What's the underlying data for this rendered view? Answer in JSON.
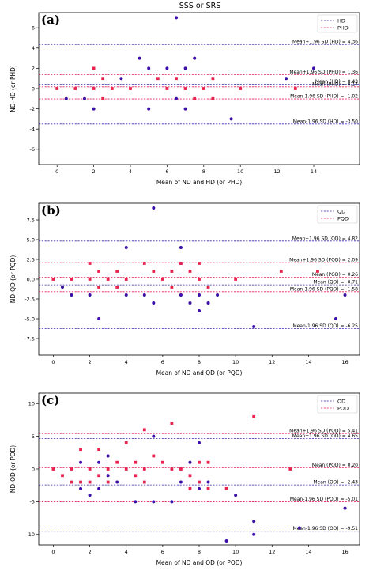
{
  "figure_title": "SSS or SRS",
  "colors": {
    "blue": "#3a2aa8",
    "red": "#e0245e",
    "blue_marker": "#3b0fa8",
    "red_marker": "#e8234f"
  },
  "chart_data": [
    {
      "type": "scatter",
      "panel_label": "(a)",
      "xlabel": "Mean of ND and HD (or PHD)",
      "ylabel": "ND-HD (or PHD)",
      "xlim": [
        -1.0,
        16.5
      ],
      "ylim": [
        -7.5,
        7.5
      ],
      "xticks": [
        0,
        2,
        4,
        6,
        8,
        10,
        12,
        14
      ],
      "yticks": [
        -6,
        -4,
        -2,
        0,
        2,
        4,
        6
      ],
      "legend_position": "top-right",
      "series": [
        {
          "name": "HD",
          "color": "blue",
          "points": [
            [
              0.5,
              -1
            ],
            [
              1.5,
              -1
            ],
            [
              2,
              -2
            ],
            [
              3.5,
              1
            ],
            [
              4.5,
              3
            ],
            [
              5,
              2
            ],
            [
              5,
              -2
            ],
            [
              6,
              2
            ],
            [
              6.5,
              7
            ],
            [
              6.5,
              -1
            ],
            [
              7,
              2
            ],
            [
              7,
              -2
            ],
            [
              7.5,
              3
            ],
            [
              9.5,
              -3
            ],
            [
              12.5,
              1
            ],
            [
              14,
              2
            ]
          ]
        },
        {
          "name": "PHD",
          "color": "red",
          "points": [
            [
              0,
              0
            ],
            [
              1,
              0
            ],
            [
              2,
              2
            ],
            [
              2,
              0
            ],
            [
              2.5,
              1
            ],
            [
              2.5,
              -1
            ],
            [
              3,
              0
            ],
            [
              4,
              0
            ],
            [
              5.5,
              1
            ],
            [
              6,
              0
            ],
            [
              6.5,
              1
            ],
            [
              7,
              0
            ],
            [
              7.5,
              -1
            ],
            [
              8,
              0
            ],
            [
              8.5,
              -1
            ],
            [
              8.5,
              1
            ],
            [
              10,
              0
            ],
            [
              13,
              0
            ]
          ]
        }
      ],
      "reference_lines": [
        {
          "label": "Mean+1.96 SD (HD) = 4.36",
          "y": 4.36,
          "color": "blue"
        },
        {
          "label": "Mean+1.96 SD (PHD) = 1.36",
          "y": 1.36,
          "color": "red"
        },
        {
          "label": "Mean (HD) = 0.43",
          "y": 0.43,
          "color": "blue"
        },
        {
          "label": "Mean (PHD) = 0.17",
          "y": 0.17,
          "color": "red"
        },
        {
          "label": "Mean-1.96 SD (PHD) = -1.02",
          "y": -1.02,
          "color": "red"
        },
        {
          "label": "Mean-1.96 SD (HD) = -3.50",
          "y": -3.5,
          "color": "blue"
        }
      ]
    },
    {
      "type": "scatter",
      "panel_label": "(b)",
      "xlabel": "Mean of ND and QD (or PQD)",
      "ylabel": "ND-QD (or PQD)",
      "xlim": [
        -0.8,
        16.8
      ],
      "ylim": [
        -9.6,
        9.6
      ],
      "xticks": [
        0,
        2,
        4,
        6,
        8,
        10,
        12,
        14,
        16
      ],
      "yticks": [
        -7.5,
        -5.0,
        -2.5,
        0.0,
        2.5,
        5.0,
        7.5
      ],
      "ytick_labels": [
        "-7.5",
        "-5.0",
        "-2.5",
        "0.0",
        "2.5",
        "5.0",
        "7.5"
      ],
      "legend_position": "top-right",
      "series": [
        {
          "name": "QD",
          "color": "blue",
          "points": [
            [
              0.5,
              -1
            ],
            [
              1,
              -2
            ],
            [
              2,
              -2
            ],
            [
              2.5,
              -5
            ],
            [
              4,
              4
            ],
            [
              4,
              -2
            ],
            [
              5,
              -2
            ],
            [
              5.5,
              9
            ],
            [
              5.5,
              -3
            ],
            [
              7,
              4
            ],
            [
              7,
              2
            ],
            [
              7,
              -2
            ],
            [
              7.5,
              -3
            ],
            [
              8,
              -4
            ],
            [
              8,
              -2
            ],
            [
              8.5,
              -3
            ],
            [
              9,
              -2
            ],
            [
              11,
              -6
            ],
            [
              15.5,
              -5
            ],
            [
              16,
              -2
            ]
          ]
        },
        {
          "name": "PQD",
          "color": "red",
          "points": [
            [
              0,
              0
            ],
            [
              1,
              0
            ],
            [
              2,
              2
            ],
            [
              2,
              0
            ],
            [
              2.5,
              1
            ],
            [
              2.5,
              -1
            ],
            [
              3,
              0
            ],
            [
              3.5,
              1
            ],
            [
              3.5,
              -1
            ],
            [
              4,
              0
            ],
            [
              5,
              2
            ],
            [
              5.5,
              1
            ],
            [
              6,
              0
            ],
            [
              6.5,
              1
            ],
            [
              6.5,
              -1
            ],
            [
              7,
              2
            ],
            [
              7.5,
              1
            ],
            [
              8,
              2
            ],
            [
              8,
              0
            ],
            [
              8.5,
              -1
            ],
            [
              10,
              0
            ],
            [
              12.5,
              1
            ],
            [
              14.5,
              1
            ]
          ]
        }
      ],
      "reference_lines": [
        {
          "label": "Mean+1.96 SD (QD) = 4.82",
          "y": 4.82,
          "color": "blue"
        },
        {
          "label": "Mean+1.96 SD (PQD) = 2.09",
          "y": 2.09,
          "color": "red"
        },
        {
          "label": "Mean (PQD) = 0.26",
          "y": 0.26,
          "color": "red"
        },
        {
          "label": "Mean (QD) = -0.71",
          "y": -0.71,
          "color": "blue"
        },
        {
          "label": "Mean-1.96 SD (PQD) = -1.58",
          "y": -1.58,
          "color": "red"
        },
        {
          "label": "Mean-1.96 SD (QD) = -6.25",
          "y": -6.25,
          "color": "blue"
        }
      ]
    },
    {
      "type": "scatter",
      "panel_label": "(c)",
      "xlabel": "Mean of ND and OD (or POD)",
      "ylabel": "ND-OD (or POD)",
      "xlim": [
        -0.8,
        16.8
      ],
      "ylim": [
        -11.6,
        11.6
      ],
      "xticks": [
        0,
        2,
        4,
        6,
        8,
        10,
        12,
        14,
        16
      ],
      "yticks": [
        -10,
        -5,
        0,
        5,
        10
      ],
      "legend_position": "top-right",
      "series": [
        {
          "name": "OD",
          "color": "blue",
          "points": [
            [
              1.5,
              1
            ],
            [
              1.5,
              -3
            ],
            [
              2,
              -4
            ],
            [
              2.5,
              1
            ],
            [
              2.5,
              -3
            ],
            [
              3,
              2
            ],
            [
              3,
              -1
            ],
            [
              3.5,
              -2
            ],
            [
              4.5,
              -5
            ],
            [
              5.5,
              5
            ],
            [
              5.5,
              -5
            ],
            [
              6.5,
              -5
            ],
            [
              7,
              -2
            ],
            [
              7.5,
              1
            ],
            [
              8,
              4
            ],
            [
              8,
              -3
            ],
            [
              8.5,
              -2
            ],
            [
              9.5,
              -11
            ],
            [
              10,
              -4
            ],
            [
              11,
              -8
            ],
            [
              11,
              -10
            ],
            [
              13.5,
              -9
            ],
            [
              16,
              -6
            ]
          ]
        },
        {
          "name": "POD",
          "color": "red",
          "points": [
            [
              0,
              0
            ],
            [
              0.5,
              -1
            ],
            [
              1,
              0
            ],
            [
              1,
              -2
            ],
            [
              1.5,
              3
            ],
            [
              1.5,
              -2
            ],
            [
              2,
              0
            ],
            [
              2,
              -2
            ],
            [
              2.5,
              3
            ],
            [
              2.5,
              -1
            ],
            [
              3,
              0
            ],
            [
              3,
              -2
            ],
            [
              3.5,
              1
            ],
            [
              4,
              4
            ],
            [
              4,
              0
            ],
            [
              4.5,
              1
            ],
            [
              4.5,
              -1
            ],
            [
              5,
              6
            ],
            [
              5,
              0
            ],
            [
              5,
              -2
            ],
            [
              5.5,
              2
            ],
            [
              6,
              1
            ],
            [
              6.5,
              7
            ],
            [
              6.5,
              0
            ],
            [
              7,
              0
            ],
            [
              7.5,
              -1
            ],
            [
              7.5,
              -3
            ],
            [
              8,
              1
            ],
            [
              8,
              -2
            ],
            [
              8.5,
              1
            ],
            [
              8.5,
              -3
            ],
            [
              9.5,
              -3
            ],
            [
              11,
              8
            ],
            [
              13,
              0
            ]
          ]
        }
      ],
      "reference_lines": [
        {
          "label": "Mean+1.96 SD (POD) = 5.41",
          "y": 5.41,
          "color": "red"
        },
        {
          "label": "Mean+1.96 SD (OD) = 4.65",
          "y": 4.65,
          "color": "blue"
        },
        {
          "label": "Mean (POD) = 0.20",
          "y": 0.2,
          "color": "red"
        },
        {
          "label": "Mean (OD) = -2.43",
          "y": -2.43,
          "color": "blue"
        },
        {
          "label": "Mean-1.96 SD (POD) = -5.01",
          "y": -5.01,
          "color": "red"
        },
        {
          "label": "Mean-1.96 SD (OD) = -9.51",
          "y": -9.51,
          "color": "blue"
        }
      ]
    }
  ]
}
